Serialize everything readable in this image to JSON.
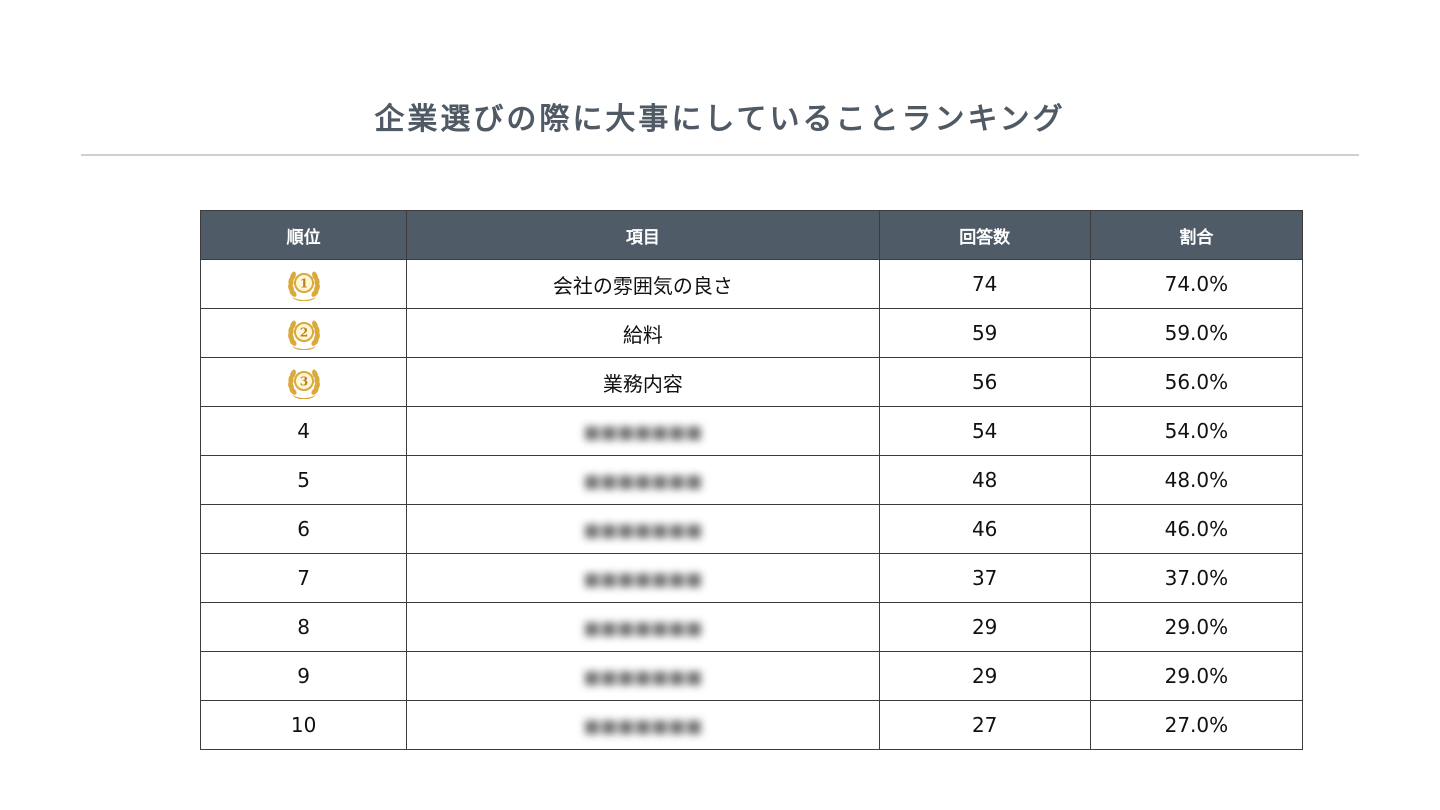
{
  "title": "企業選びの際に大事にしていることランキング",
  "colors": {
    "header_bg": "#4f5c68",
    "title_text": "#4f5a64",
    "medal_gold": "#d9a93a"
  },
  "table": {
    "headers": {
      "rank": "順位",
      "item": "項目",
      "count": "回答数",
      "ratio": "割合"
    },
    "rows": [
      {
        "rank": "1",
        "rank_icon": "gold-medal-1-icon",
        "item": "会社の雰囲気の良さ",
        "item_blurred": false,
        "count": "74",
        "ratio": "74.0%"
      },
      {
        "rank": "2",
        "rank_icon": "gold-medal-2-icon",
        "item": "給料",
        "item_blurred": false,
        "count": "59",
        "ratio": "59.0%"
      },
      {
        "rank": "3",
        "rank_icon": "gold-medal-3-icon",
        "item": "業務内容",
        "item_blurred": false,
        "count": "56",
        "ratio": "56.0%"
      },
      {
        "rank": "4",
        "item": "",
        "item_blurred": true,
        "count": "54",
        "ratio": "54.0%"
      },
      {
        "rank": "5",
        "item": "",
        "item_blurred": true,
        "count": "48",
        "ratio": "48.0%"
      },
      {
        "rank": "6",
        "item": "",
        "item_blurred": true,
        "count": "46",
        "ratio": "46.0%"
      },
      {
        "rank": "7",
        "item": "",
        "item_blurred": true,
        "count": "37",
        "ratio": "37.0%"
      },
      {
        "rank": "8",
        "item": "",
        "item_blurred": true,
        "count": "29",
        "ratio": "29.0%"
      },
      {
        "rank": "9",
        "item": "",
        "item_blurred": true,
        "count": "29",
        "ratio": "29.0%"
      },
      {
        "rank": "10",
        "item": "",
        "item_blurred": true,
        "count": "27",
        "ratio": "27.0%"
      }
    ]
  }
}
